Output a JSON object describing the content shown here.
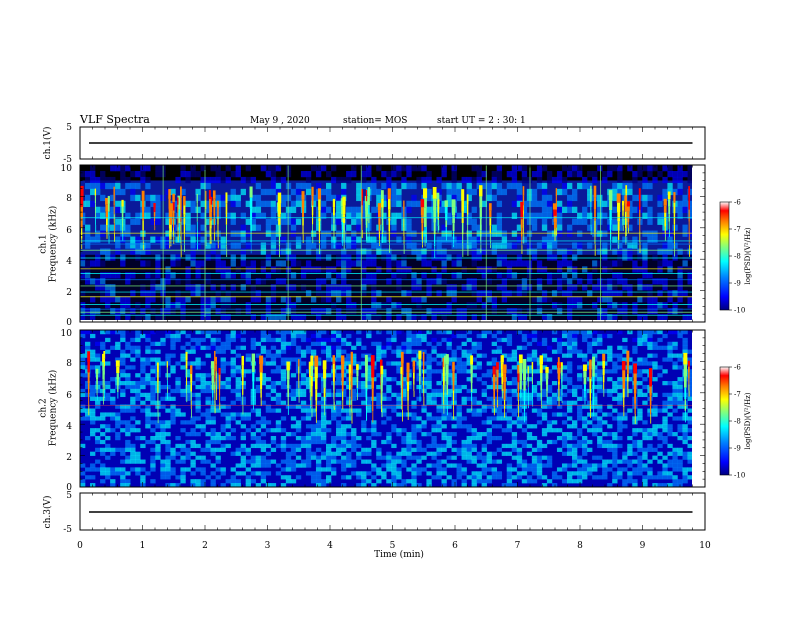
{
  "header": {
    "title": "VLF Spectra",
    "date": "May 9 , 2020",
    "station": "station= MOS",
    "start": "start UT = 2 : 30: 1"
  },
  "chart_data": [
    {
      "type": "line",
      "panel": "ch1-voltage",
      "ylabel": "ch.1(V)",
      "ylim": [
        -5,
        5
      ],
      "yticks": [
        "5",
        "-5"
      ],
      "series": [
        {
          "x": [
            0,
            9.8
          ],
          "y": [
            0,
            0
          ]
        }
      ]
    },
    {
      "type": "heatmap",
      "panel": "ch1-spectrogram",
      "ylabel": "ch.1\nFrequency (kHz)",
      "ylim": [
        0,
        10
      ],
      "yticks": [
        "10",
        "8",
        "6",
        "4",
        "2",
        "0"
      ],
      "xlim": [
        0,
        9.8
      ],
      "colorbar": {
        "label": "log(PSD)(V²/Hz)",
        "range": [
          -10,
          -6
        ],
        "ticks": [
          "-6",
          "-7",
          "-8",
          "-9",
          "-10"
        ],
        "colormap": [
          "#00007f",
          "#0000ff",
          "#0080ff",
          "#00ffff",
          "#80ff80",
          "#ffff00",
          "#ff8000",
          "#ff0000",
          "#ffffff"
        ]
      },
      "features": {
        "lines_khz": [
          0.3,
          0.5,
          0.7,
          1.0,
          1.5,
          1.8,
          2.2,
          2.6,
          3.0,
          3.3,
          4.0,
          4.5,
          4.9,
          5.1,
          5.6,
          6.6
        ],
        "high_band_khz": [
          4.2,
          9.0
        ],
        "impulses_min": [
          1.33,
          2.0,
          3.33,
          4.5,
          6.5,
          7.2,
          8.33
        ]
      }
    },
    {
      "type": "heatmap",
      "panel": "ch2-spectrogram",
      "ylabel": "ch.2\nFrequency (kHz)",
      "ylim": [
        0,
        10
      ],
      "yticks": [
        "10",
        "8",
        "6",
        "4",
        "2",
        "0"
      ],
      "xlim": [
        0,
        9.8
      ],
      "colorbar": {
        "label": "log(PSD)(V²/Hz)",
        "range": [
          -10,
          -6
        ],
        "ticks": [
          "-6",
          "-7",
          "-8",
          "-9",
          "-10"
        ],
        "colormap": [
          "#00007f",
          "#0000ff",
          "#0080ff",
          "#00ffff",
          "#80ff80",
          "#ffff00",
          "#ff8000",
          "#ff0000",
          "#ffffff"
        ]
      },
      "features": {
        "lines_khz": [
          5.2
        ],
        "high_band_khz": [
          4.2,
          8.8
        ]
      }
    },
    {
      "type": "line",
      "panel": "ch3-voltage",
      "ylabel": "ch.3(V)",
      "ylim": [
        -5,
        5
      ],
      "yticks": [
        "5",
        "-5"
      ],
      "xlabel": "Time (min)",
      "xlim": [
        0,
        10
      ],
      "xticks": [
        "0",
        "1",
        "2",
        "3",
        "4",
        "5",
        "6",
        "7",
        "8",
        "9",
        "10"
      ],
      "series": [
        {
          "x": [
            0,
            9.8
          ],
          "y": [
            0,
            0
          ]
        }
      ]
    }
  ]
}
